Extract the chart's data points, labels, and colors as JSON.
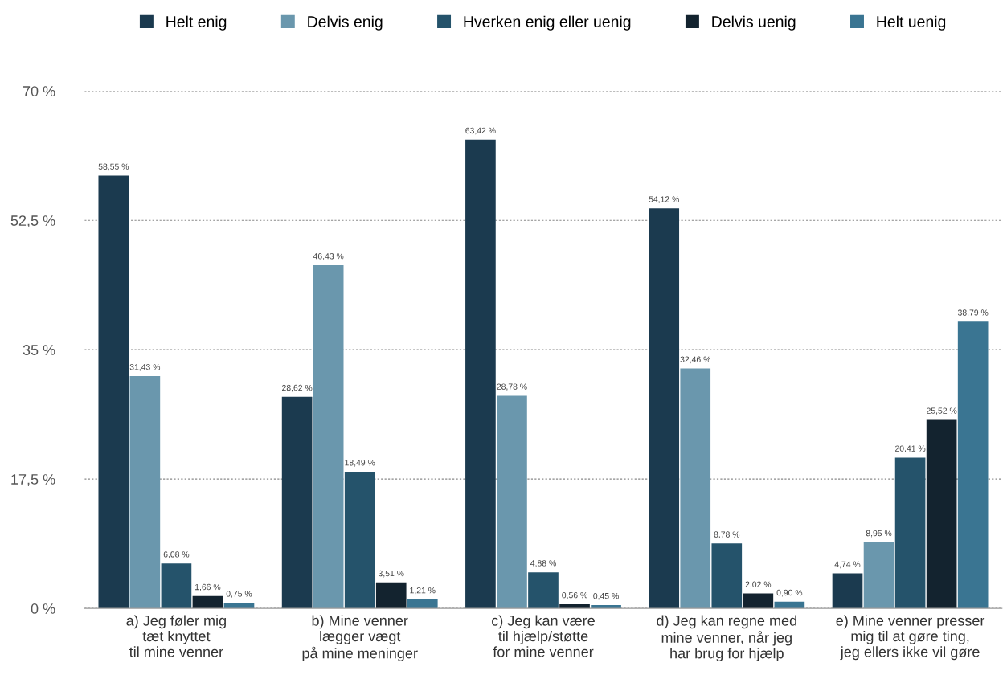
{
  "chart_data": {
    "type": "bar",
    "categories": [
      "a) Jeg føler mig\ntæt knyttet\ntil mine venner",
      "b) Mine venner\nlægger vægt\npå mine meninger",
      "c) Jeg kan være\ntil hjælp/støtte\nfor mine venner",
      "d) Jeg kan regne med\nmine venner, når jeg\nhar brug for hjælp",
      "e) Mine venner presser\nmig til at gøre ting,\njeg ellers ikke vil gøre"
    ],
    "series": [
      {
        "name": "Helt enig",
        "color": "#1b3a4f",
        "values": [
          58.55,
          28.62,
          63.42,
          54.12,
          4.74
        ],
        "value_labels": [
          "58,55 %",
          "28,62 %",
          "63,42 %",
          "54,12 %",
          "4,74 %"
        ]
      },
      {
        "name": "Delvis enig",
        "color": "#6a97ad",
        "values": [
          31.43,
          46.43,
          28.78,
          32.46,
          8.95
        ],
        "value_labels": [
          "31,43 %",
          "46,43 %",
          "28,78 %",
          "32,46 %",
          "8,95 %"
        ]
      },
      {
        "name": "Hverken enig eller uenig",
        "color": "#25536b",
        "values": [
          6.08,
          18.49,
          4.88,
          8.78,
          20.41
        ],
        "value_labels": [
          "6,08 %",
          "18,49 %",
          "4,88 %",
          "8,78 %",
          "20,41 %"
        ]
      },
      {
        "name": "Delvis uenig",
        "color": "#13232f",
        "values": [
          1.66,
          3.51,
          0.56,
          2.02,
          25.52
        ],
        "value_labels": [
          "1,66 %",
          "3,51 %",
          "0,56 %",
          "2,02 %",
          "25,52 %"
        ]
      },
      {
        "name": "Helt uenig",
        "color": "#3a7592",
        "values": [
          0.75,
          1.21,
          0.45,
          0.9,
          38.79
        ],
        "value_labels": [
          "0,75 %",
          "1,21 %",
          "0,45 %",
          "0,90 %",
          "38,79 %"
        ]
      }
    ],
    "ylim": [
      0,
      70
    ],
    "yticks": [
      {
        "value": 0,
        "label": "0 %"
      },
      {
        "value": 17.5,
        "label": "17,5 %"
      },
      {
        "value": 35,
        "label": "35 %"
      },
      {
        "value": 52.5,
        "label": "52,5 %"
      },
      {
        "value": 70,
        "label": "70 %"
      }
    ],
    "grid": "y",
    "legend": "top"
  }
}
